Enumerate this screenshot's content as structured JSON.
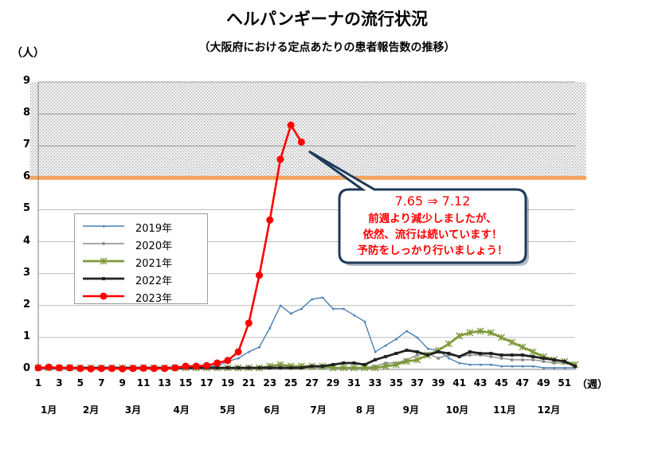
{
  "title": "ヘルパンギーナの流行状況",
  "subtitle": "（大阪府における定点あたりの患者報告数の推移）",
  "y_unit": "（人）",
  "x_unit": "（週）",
  "months": [
    "1月",
    "2月",
    "3月",
    "4月",
    "5月",
    "6月",
    "7月",
    "8 月",
    "9月",
    "10月",
    "11月",
    "12月"
  ],
  "callout": {
    "headline": "7.65 ⇒ 7.12",
    "lines": [
      "前週より減少しましたが、",
      "依然、流行は続いています！",
      "予防をしっかり行いましょう！"
    ]
  },
  "colors": {
    "2019": "#4a7fb5",
    "2020": "#8c8c8c",
    "2021": "#7f9a3c",
    "2022": "#222222",
    "2023": "#ff0000",
    "threshold_line": "#f4a460",
    "alert_zone": "#c0c0c0"
  },
  "chart_data": {
    "type": "line",
    "ylim": [
      0,
      9
    ],
    "yticks": [
      0,
      1,
      2,
      3,
      4,
      5,
      6,
      7,
      8,
      9
    ],
    "xticks": [
      1,
      3,
      5,
      7,
      9,
      11,
      13,
      15,
      17,
      19,
      21,
      23,
      25,
      27,
      29,
      31,
      33,
      35,
      37,
      39,
      41,
      43,
      45,
      47,
      49,
      51
    ],
    "xlim": [
      1,
      52
    ],
    "grid": true,
    "legend_position": "left-center",
    "alert_threshold": 6,
    "series": [
      {
        "name": "2019年",
        "values": [
          0.05,
          0.05,
          0.05,
          0.05,
          0.05,
          0.05,
          0.05,
          0.05,
          0.05,
          0.05,
          0.05,
          0.05,
          0.05,
          0.05,
          0.05,
          0.05,
          0.1,
          0.1,
          0.25,
          0.35,
          0.55,
          0.7,
          1.3,
          2.0,
          1.75,
          1.9,
          2.2,
          2.25,
          1.9,
          1.9,
          1.7,
          1.5,
          0.55,
          0.75,
          0.95,
          1.2,
          1.0,
          0.65,
          0.6,
          0.35,
          0.2,
          0.15,
          0.15,
          0.15,
          0.1,
          0.1,
          0.1,
          0.1,
          0.05,
          0.05,
          0.05,
          0.05
        ]
      },
      {
        "name": "2020年",
        "values": [
          0.05,
          0.05,
          0.05,
          0.05,
          0.05,
          0.05,
          0.05,
          0.05,
          0.05,
          0.05,
          0.05,
          0.05,
          0.05,
          0.05,
          0.05,
          0.05,
          0.05,
          0.05,
          0.05,
          0.05,
          0.05,
          0.05,
          0.05,
          0.05,
          0.05,
          0.05,
          0.05,
          0.05,
          0.05,
          0.05,
          0.05,
          0.05,
          0.1,
          0.2,
          0.2,
          0.3,
          0.45,
          0.5,
          0.35,
          0.45,
          0.4,
          0.45,
          0.45,
          0.4,
          0.35,
          0.3,
          0.3,
          0.3,
          0.25,
          0.2,
          0.2,
          0.15
        ]
      },
      {
        "name": "2021年",
        "values": [
          0.05,
          0.05,
          0.05,
          0.05,
          0.05,
          0.05,
          0.05,
          0.05,
          0.05,
          0.05,
          0.05,
          0.05,
          0.05,
          0.05,
          0.05,
          0.05,
          0.05,
          0.05,
          0.05,
          0.05,
          0.05,
          0.05,
          0.1,
          0.15,
          0.1,
          0.1,
          0.1,
          0.1,
          0.05,
          0.05,
          0.05,
          0.05,
          0.05,
          0.1,
          0.15,
          0.25,
          0.3,
          0.45,
          0.6,
          0.8,
          1.05,
          1.15,
          1.2,
          1.15,
          1.0,
          0.85,
          0.7,
          0.55,
          0.4,
          0.3,
          0.25,
          0.15
        ]
      },
      {
        "name": "2022年",
        "values": [
          0.05,
          0.05,
          0.05,
          0.05,
          0.05,
          0.05,
          0.05,
          0.05,
          0.05,
          0.05,
          0.05,
          0.05,
          0.05,
          0.05,
          0.05,
          0.05,
          0.05,
          0.05,
          0.05,
          0.05,
          0.05,
          0.05,
          0.05,
          0.05,
          0.05,
          0.05,
          0.1,
          0.1,
          0.15,
          0.2,
          0.2,
          0.15,
          0.3,
          0.4,
          0.5,
          0.6,
          0.55,
          0.45,
          0.55,
          0.5,
          0.4,
          0.55,
          0.5,
          0.5,
          0.45,
          0.45,
          0.45,
          0.4,
          0.35,
          0.3,
          0.25,
          0.1
        ]
      },
      {
        "name": "2023年",
        "values": [
          0.05,
          0.07,
          0.05,
          0.05,
          0.03,
          0.02,
          0.03,
          0.03,
          0.02,
          0.03,
          0.04,
          0.03,
          0.03,
          0.05,
          0.1,
          0.1,
          0.12,
          0.2,
          0.28,
          0.55,
          1.45,
          2.95,
          4.68,
          6.58,
          7.65,
          7.12
        ]
      }
    ]
  }
}
